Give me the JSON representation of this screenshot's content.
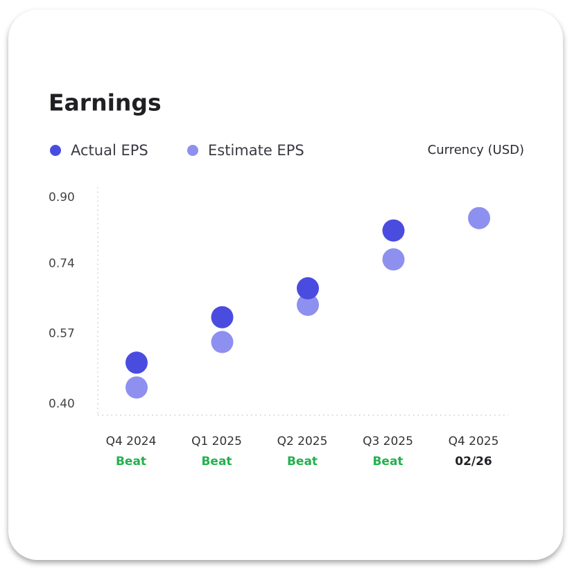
{
  "chart_data": {
    "type": "scatter",
    "title": "Earnings",
    "note": "Currency (USD)",
    "categories": [
      "Q4 2024",
      "Q1 2025",
      "Q2 2025",
      "Q3 2025",
      "Q4 2025"
    ],
    "statuses": [
      "Beat",
      "Beat",
      "Beat",
      "Beat",
      "02/26"
    ],
    "status_colors": [
      "#22b14c",
      "#22b14c",
      "#22b14c",
      "#22b14c",
      "#222228"
    ],
    "series": [
      {
        "name": "Actual EPS",
        "color": "#4a4ce0",
        "values": [
          0.5,
          0.61,
          0.68,
          0.82,
          null
        ]
      },
      {
        "name": "Estimate EPS",
        "color": "#8d90ef",
        "values": [
          0.44,
          0.55,
          0.64,
          0.75,
          0.85
        ]
      }
    ],
    "ylim": [
      0.373,
      0.925
    ],
    "yticks": [
      {
        "value": 0.4,
        "label": "0.40"
      },
      {
        "value": 0.57,
        "label": "0.57"
      },
      {
        "value": 0.74,
        "label": "0.74"
      },
      {
        "value": 0.9,
        "label": "0.90"
      }
    ]
  }
}
